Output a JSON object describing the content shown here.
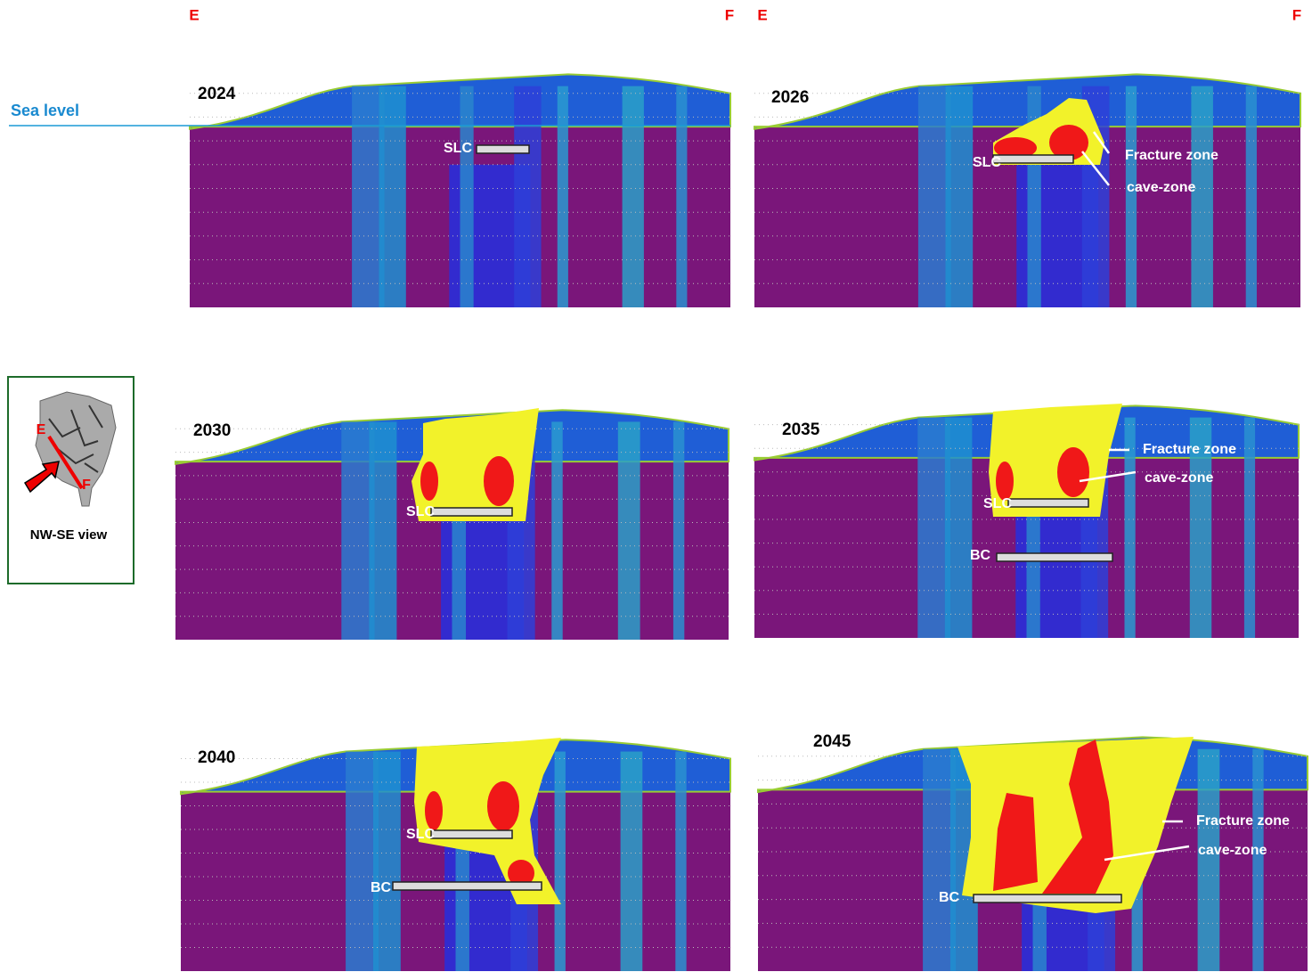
{
  "header": {
    "left_panel_labels": [
      "E",
      "F"
    ],
    "right_panel_labels": [
      "E",
      "F"
    ]
  },
  "sea_level": "Sea level",
  "inset": {
    "end_labels": [
      "E",
      "F"
    ],
    "caption": "NW-SE view"
  },
  "panels": [
    {
      "year": "2024",
      "labels": [
        "SLC"
      ]
    },
    {
      "year": "2026",
      "labels": [
        "SLC",
        "Fracture zone",
        "cave-zone"
      ]
    },
    {
      "year": "2030",
      "labels": [
        "SLC"
      ]
    },
    {
      "year": "2035",
      "labels": [
        "SLC",
        "BC",
        "Fracture zone",
        "cave-zone"
      ]
    },
    {
      "year": "2040",
      "labels": [
        "SLC",
        "BC"
      ]
    },
    {
      "year": "2045",
      "labels": [
        "BC",
        "Fracture zone",
        "cave-zone"
      ]
    }
  ]
}
